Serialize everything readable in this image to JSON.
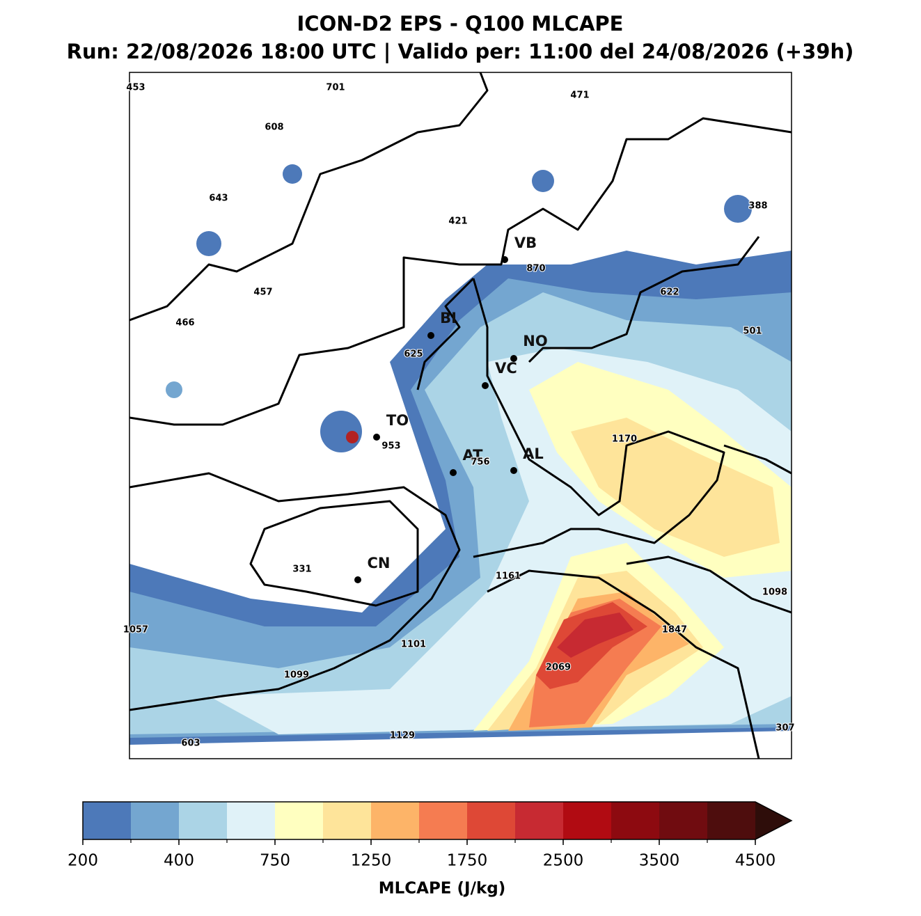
{
  "header": {
    "title": "ICON-D2 EPS - Q100 MLCAPE",
    "subtitle": "Run: 22/08/2026 18:00 UTC | Valido per: 11:00 del 24/08/2026 (+39h)"
  },
  "cities": [
    "VB",
    "BI",
    "NO",
    "VC",
    "TO",
    "AT",
    "AL",
    "CN"
  ],
  "value_labels": [
    453,
    701,
    471,
    608,
    643,
    421,
    388,
    870,
    457,
    622,
    466,
    501,
    625,
    953,
    1170,
    756,
    331,
    1161,
    1098,
    1057,
    1847,
    1101,
    2069,
    1099,
    307,
    1129,
    603
  ],
  "colorbar": {
    "label": "MLCAPE (J/kg)",
    "ticks": [
      200,
      400,
      750,
      1250,
      1750,
      2500,
      3500,
      4500
    ],
    "colors": [
      "#4d79b9",
      "#74a6d0",
      "#abd4e6",
      "#e0f2f8",
      "#ffffc0",
      "#fee49a",
      "#fdb468",
      "#f57c51",
      "#de4836",
      "#c72a32",
      "#b10b12",
      "#8d0a10",
      "#700c10",
      "#4e0d0d",
      "#2e0d0a"
    ]
  }
}
